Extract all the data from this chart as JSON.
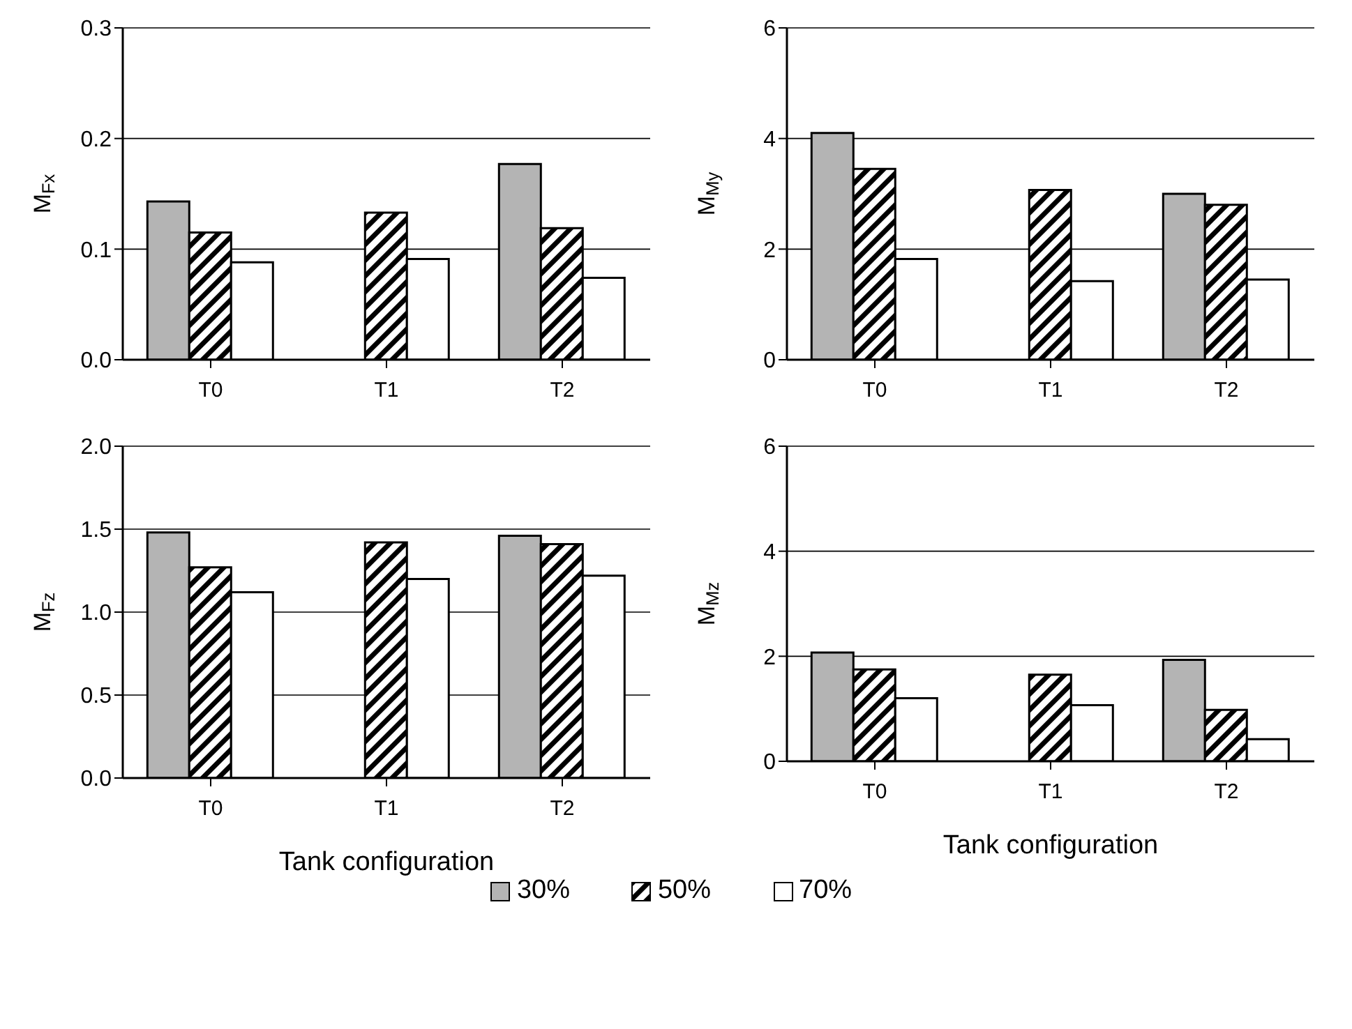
{
  "chart_data": [
    {
      "type": "bar",
      "ylabel": "M$_{Fx}$",
      "categories": [
        "T0",
        "T1",
        "T2"
      ],
      "ylim": [
        0,
        0.3
      ],
      "yticks": [
        {
          "value": 0,
          "label": "0.0"
        },
        0.1,
        0.2,
        0.3
      ],
      "grid": "y",
      "series": [
        {
          "color": "#b4b4b4",
          "values": [
            0.143,
            null,
            0.177
          ]
        },
        {
          "color": "#000000",
          "values": [
            0.115,
            0.133,
            0.119
          ]
        },
        {
          "color": "#ffffff",
          "values": [
            0.088,
            0.091,
            0.074
          ]
        }
      ]
    },
    {
      "type": "bar",
      "ylabel": "M$_{My}$",
      "categories": [
        "T0",
        "T1",
        "T2"
      ],
      "ylim": [
        0,
        6
      ],
      "yticks": [
        0,
        2,
        4,
        6
      ],
      "grid": "y",
      "series": [
        {
          "color": "#b4b4b4",
          "values": [
            4.1,
            null,
            3.0
          ]
        },
        {
          "color": "#000000",
          "values": [
            3.45,
            3.07,
            2.8
          ]
        },
        {
          "color": "#ffffff",
          "values": [
            1.82,
            1.42,
            1.45
          ]
        }
      ]
    },
    {
      "type": "bar",
      "xlabel": "Tank configuration",
      "ylabel": "M$_{Fz}$",
      "categories": [
        "T0",
        "T1",
        "T2"
      ],
      "ylim": [
        0,
        2
      ],
      "yticks": [
        {
          "value": 0,
          "label": "0.0"
        },
        0.5,
        {
          "value": 1,
          "label": "1.0"
        },
        1.5,
        {
          "value": 2,
          "label": "2.0"
        }
      ],
      "grid": "y",
      "series": [
        {
          "color": "#b4b4b4",
          "values": [
            1.48,
            null,
            1.46
          ]
        },
        {
          "color": "#000000",
          "values": [
            1.27,
            1.42,
            1.41
          ]
        },
        {
          "color": "#ffffff",
          "values": [
            1.12,
            1.2,
            1.22
          ]
        }
      ]
    },
    {
      "type": "bar",
      "xlabel": "Tank configuration",
      "ylabel": "M$_{Mz}$",
      "categories": [
        "T0",
        "T1",
        "T2"
      ],
      "ylim": [
        0,
        6
      ],
      "yticks": [
        0,
        2,
        4,
        6
      ],
      "grid": "y",
      "legend": "bottom",
      "series": [
        {
          "name": "30%",
          "color": "#b4b4b4",
          "values": [
            2.07,
            null,
            1.93
          ]
        },
        {
          "name": "50%",
          "color": "#000000",
          "values": [
            1.75,
            1.65,
            0.98
          ]
        },
        {
          "name": "70%",
          "color": "#ffffff",
          "values": [
            1.2,
            1.07,
            0.42
          ]
        }
      ]
    }
  ]
}
